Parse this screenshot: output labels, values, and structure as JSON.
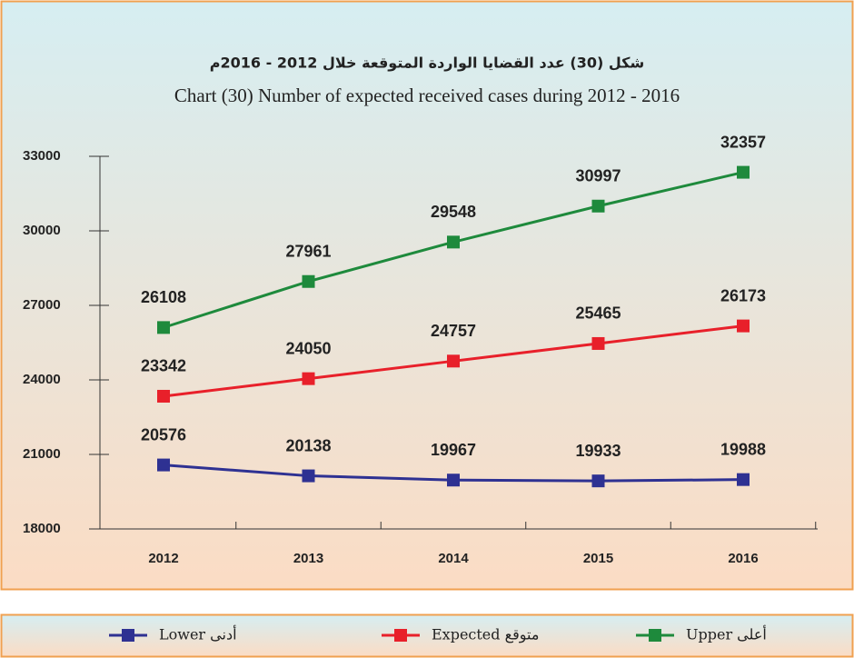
{
  "chart_data": {
    "type": "line",
    "title": "شكل (30) عدد القضايا الواردة المتوقعة خلال 2012 - 2016م",
    "subtitle": "Chart (30) Number of expected received cases during 2012 - 2016",
    "categories": [
      "2012",
      "2013",
      "2014",
      "2015",
      "2016"
    ],
    "series": [
      {
        "name": "أعلى Upper",
        "color": "#1e8a3c",
        "values": [
          26108,
          27961,
          29548,
          30997,
          32357
        ]
      },
      {
        "name": "متوقع Expected",
        "color": "#e8202a",
        "values": [
          23342,
          24050,
          24757,
          25465,
          26173
        ]
      },
      {
        "name": "أدنى Lower",
        "color": "#2e3192",
        "values": [
          20576,
          20138,
          19967,
          19933,
          19988
        ]
      }
    ],
    "ylim": [
      18000,
      33000
    ],
    "yticks": [
      18000,
      21000,
      24000,
      27000,
      30000,
      33000
    ]
  }
}
